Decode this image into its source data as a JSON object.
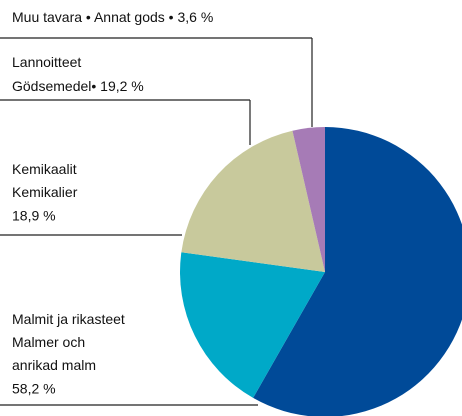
{
  "chart_data": {
    "type": "pie",
    "categories": [
      [
        "Malmit ja rikasteet",
        "Malmer och",
        "anrikad malm"
      ],
      [
        "Kemikaalit",
        "Kemikalier"
      ],
      [
        "Lannoitteet",
        "Gödsemedel•"
      ],
      [
        "Muu tavara • Annat gods •"
      ]
    ],
    "values": [
      58.2,
      18.9,
      19.2,
      3.6
    ],
    "value_labels": [
      "58,2 %",
      "18,9 %",
      "19,2 %",
      "3,6 %"
    ],
    "colors": [
      "#004a98",
      "#00a9c8",
      "#c8c99c",
      "#a67bb6"
    ]
  }
}
